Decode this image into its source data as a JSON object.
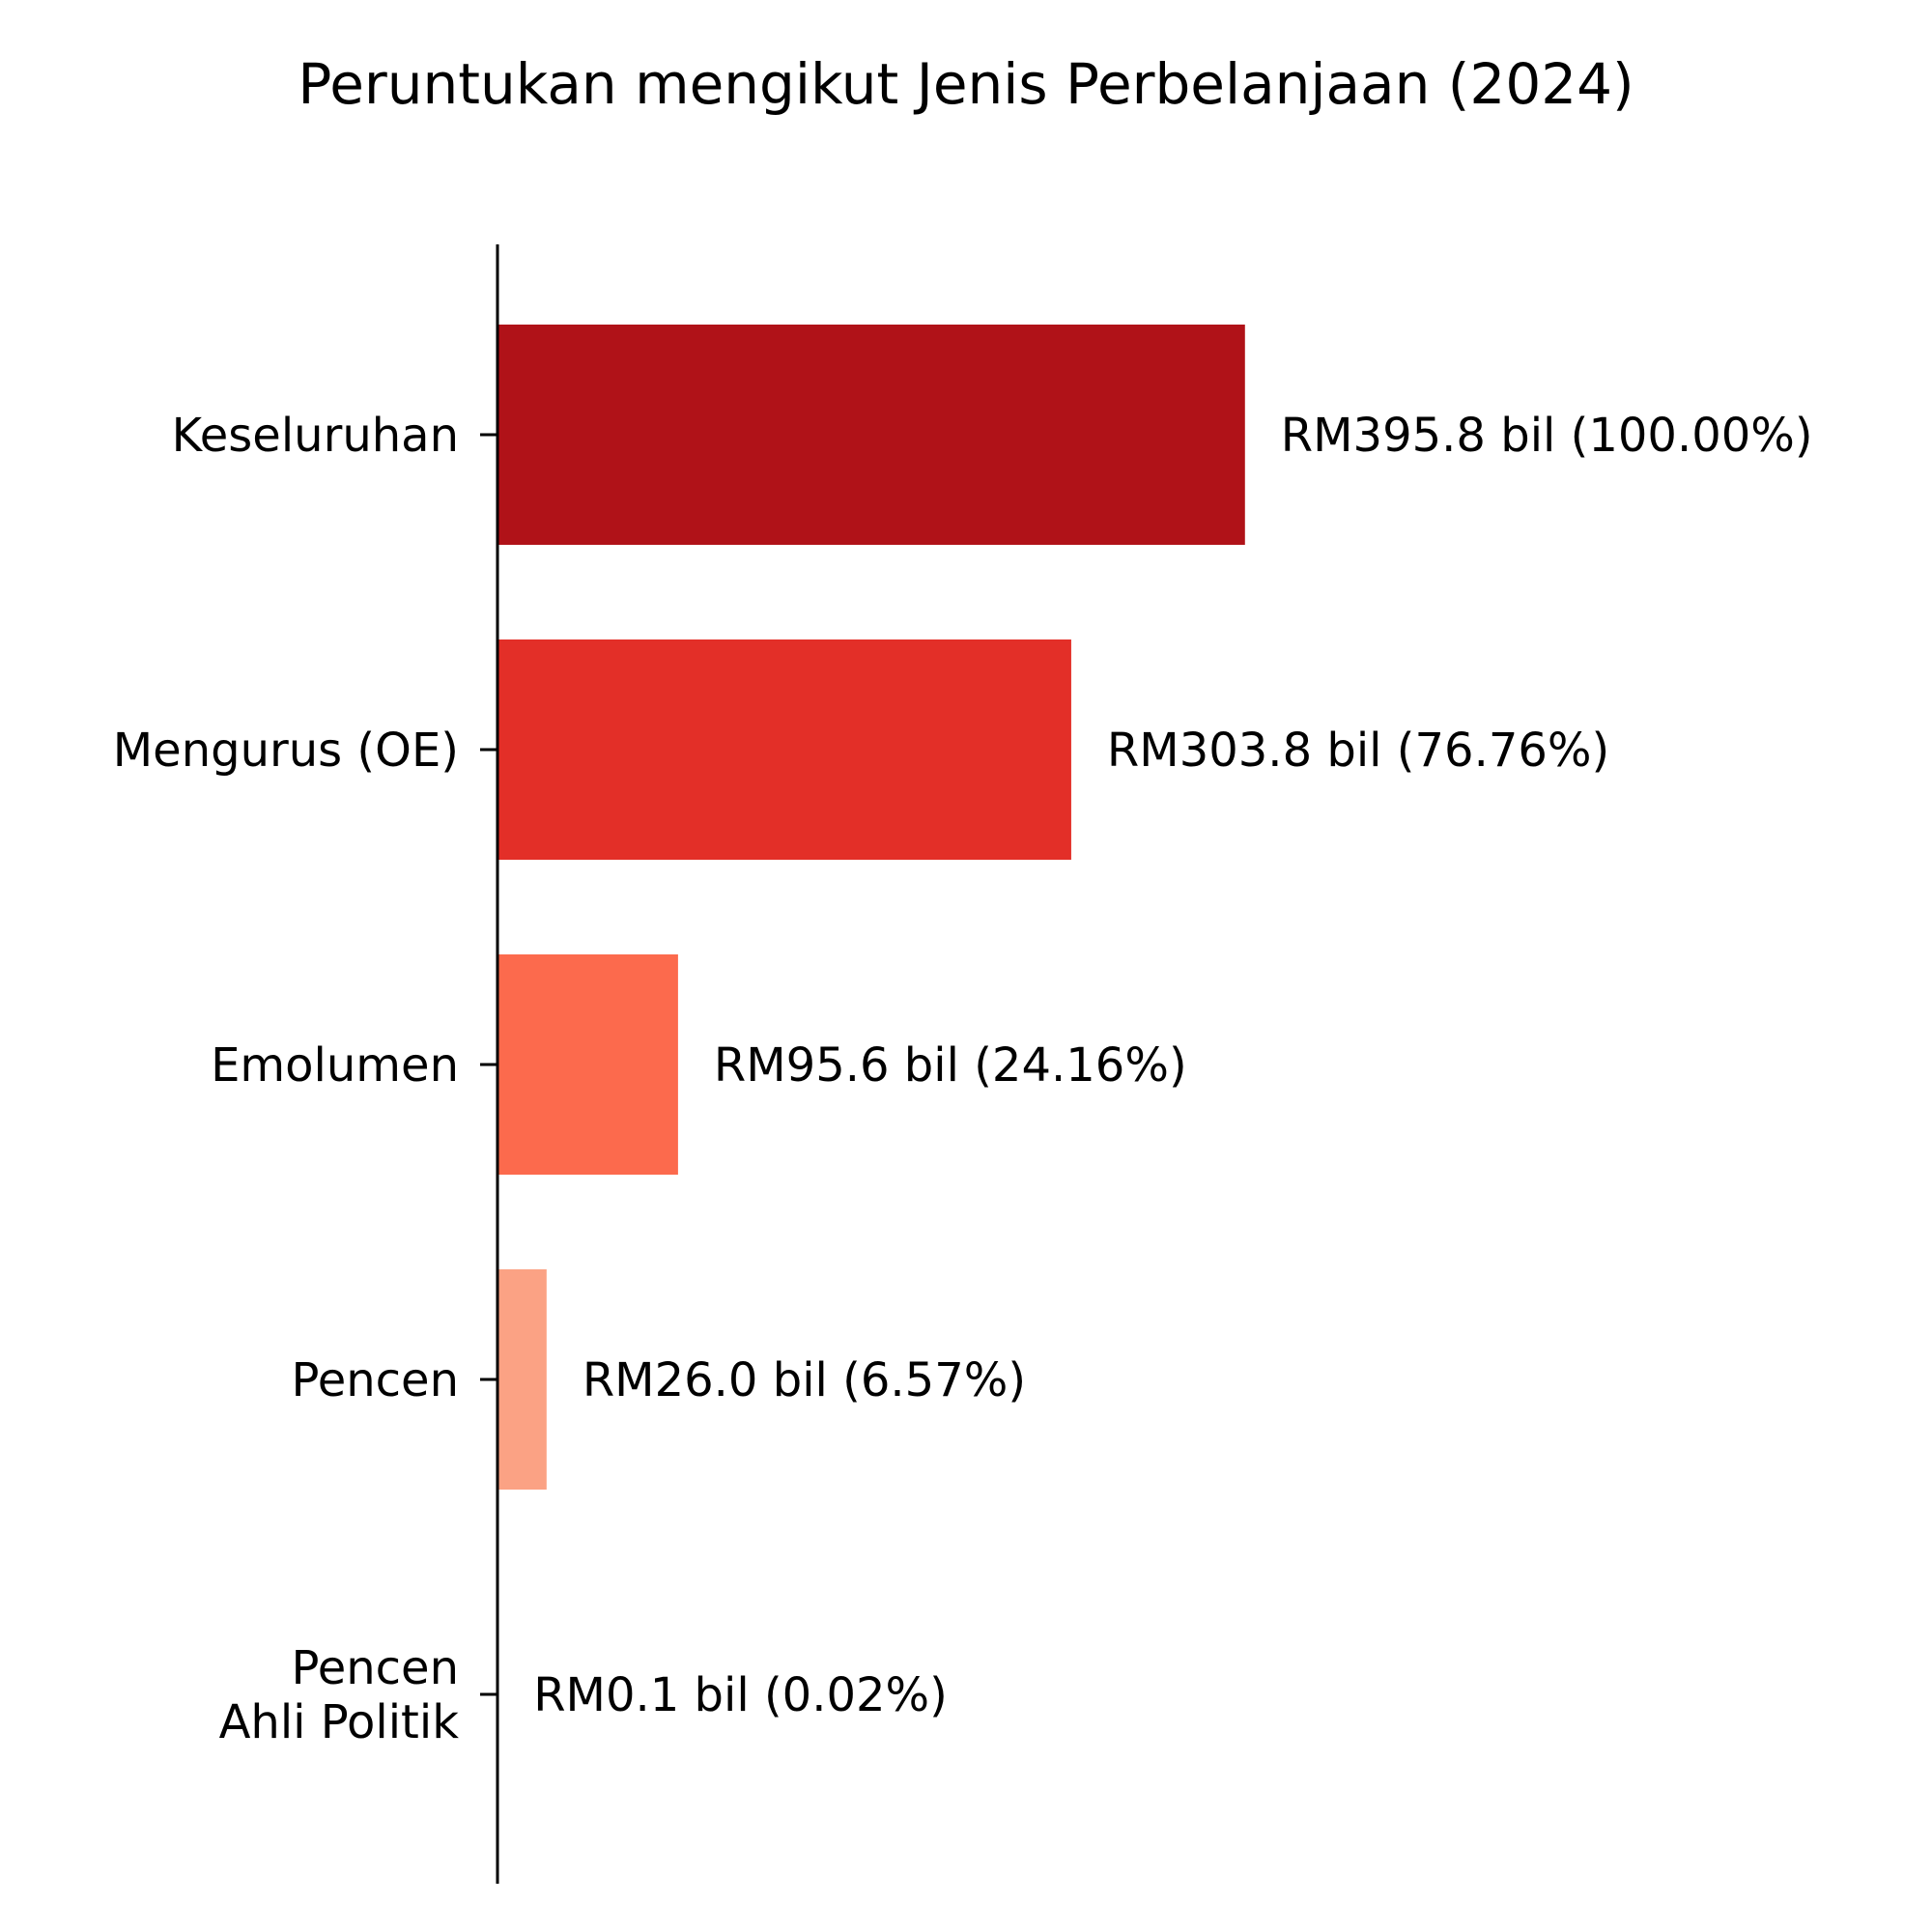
{
  "chart_data": {
    "type": "bar",
    "orientation": "horizontal",
    "title": "Peruntukan mengikut Jenis Perbelanjaan (2024)",
    "xlabel": "",
    "ylabel": "",
    "xlim": [
      0,
      500
    ],
    "grid": false,
    "legend": "none",
    "categories": [
      [
        "Keseluruhan"
      ],
      [
        "Mengurus (OE)"
      ],
      [
        "Emolumen"
      ],
      [
        "Pencen"
      ],
      [
        "Pencen",
        "Ahli Politik"
      ]
    ],
    "values": [
      395.8,
      303.8,
      95.6,
      26.0,
      0.1
    ],
    "data_labels": [
      "RM395.8 bil  (100.00%)",
      "RM303.8 bil  (76.76%)",
      "RM95.6 bil  (24.16%)",
      "RM26.0 bil  (6.57%)",
      "RM0.1 bil  (0.02%)"
    ],
    "colors": [
      "#b01218",
      "#e32f28",
      "#fc6a4d",
      "#fba284",
      "#fee0d2"
    ]
  }
}
